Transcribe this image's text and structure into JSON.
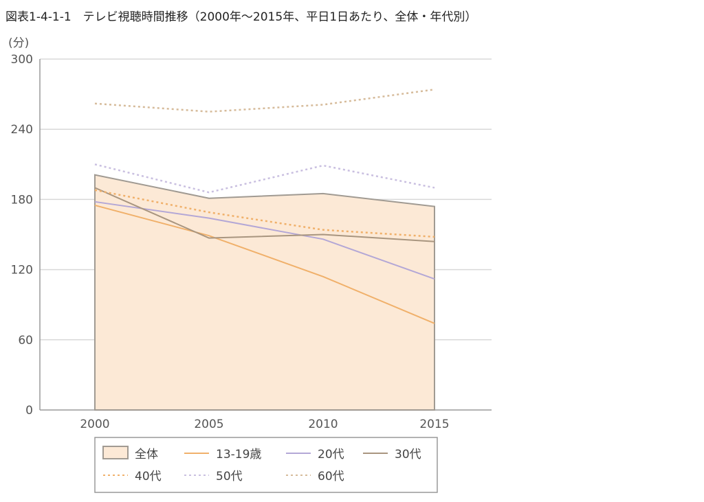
{
  "chart_data": {
    "type": "line",
    "title": "図表1-4-1-1　テレビ視聴時間推移（2000年〜2015年、平日1日あたり、全体・年代別）",
    "ylabel": "(分)",
    "xlabel": "",
    "x": [
      "2000",
      "2005",
      "2010",
      "2015"
    ],
    "ylim": [
      0,
      300
    ],
    "yticks": [
      0,
      60,
      120,
      180,
      240,
      300
    ],
    "grid": true,
    "legend_placement": "bottom",
    "series": [
      {
        "name": "全体",
        "style": "area",
        "color": "#a09a92",
        "fill": "#fce9d6",
        "values": [
          201,
          181,
          185,
          174
        ]
      },
      {
        "name": "13-19歳",
        "style": "solid",
        "color": "#f0b06a",
        "values": [
          175,
          149,
          114,
          74
        ]
      },
      {
        "name": "20代",
        "style": "solid",
        "color": "#b3a7d6",
        "values": [
          178,
          164,
          146,
          112
        ]
      },
      {
        "name": "30代",
        "style": "solid",
        "color": "#a8957f",
        "values": [
          190,
          147,
          150,
          144
        ]
      },
      {
        "name": "40代",
        "style": "dotted",
        "color": "#f0b06a",
        "values": [
          188,
          169,
          154,
          148
        ]
      },
      {
        "name": "50代",
        "style": "dotted",
        "color": "#c9bfe0",
        "values": [
          210,
          186,
          209,
          190
        ]
      },
      {
        "name": "60代",
        "style": "dotted",
        "color": "#d6bb9a",
        "values": [
          262,
          255,
          261,
          274
        ]
      }
    ]
  }
}
